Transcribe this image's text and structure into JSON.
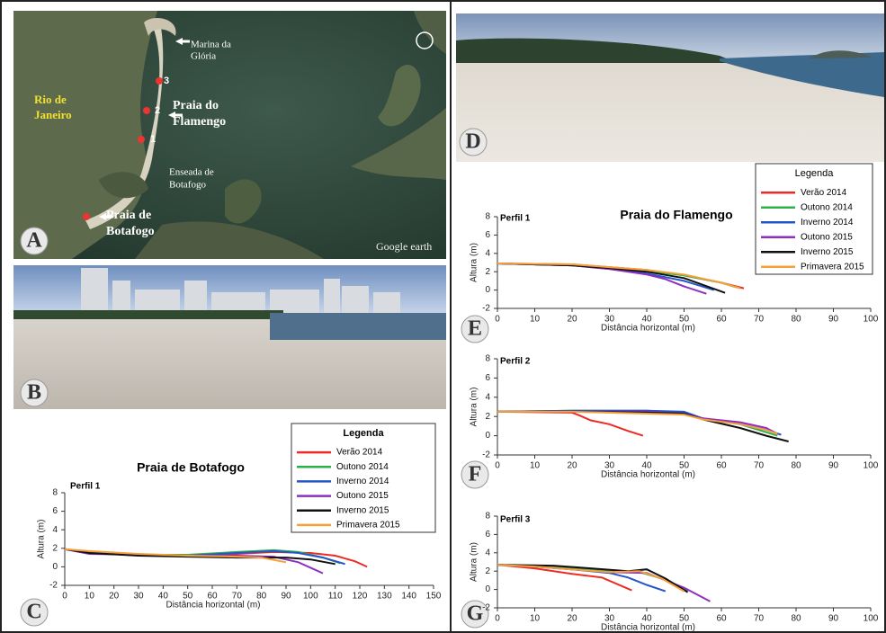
{
  "panels": [
    "A",
    "B",
    "C",
    "D",
    "E",
    "F",
    "G"
  ],
  "map": {
    "labels": {
      "marina": [
        "Marina da",
        "Glória"
      ],
      "city": [
        "Rio de",
        "Janeiro"
      ],
      "flamengo": [
        "Praia do",
        "Flamengo"
      ],
      "enseada": [
        "Enseada de",
        "Botafogo"
      ],
      "botafogo": [
        "Praia de",
        "Botafogo"
      ],
      "points": [
        "1",
        "2",
        "3"
      ],
      "credit": "Google earth"
    }
  },
  "chart_data": [
    {
      "type": "line",
      "title": "Praia de Botafogo",
      "subtitle": "Perfil 1",
      "x_label": "Distância horizontal (m)",
      "y_label": "Altura (m)",
      "legend_title": "Legenda",
      "legend": "upper right",
      "grid": false,
      "xlim": [
        0,
        150
      ],
      "xticks": [
        0,
        10,
        20,
        30,
        40,
        50,
        60,
        70,
        80,
        90,
        100,
        110,
        120,
        130,
        140,
        150
      ],
      "ylim": [
        -2,
        8
      ],
      "yticks": [
        -2,
        0,
        2,
        4,
        6,
        8
      ],
      "series": [
        {
          "name": "Verão 2014",
          "color": "#ee2a24",
          "x": [
            0,
            10,
            30,
            50,
            70,
            85,
            100,
            110,
            118,
            123
          ],
          "values": [
            1.9,
            1.6,
            1.3,
            1.2,
            1.4,
            1.6,
            1.5,
            1.2,
            0.6,
            0.0
          ]
        },
        {
          "name": "Outono 2014",
          "color": "#2db24a",
          "x": [
            0,
            10,
            30,
            50,
            70,
            85,
            95,
            105,
            112
          ],
          "values": [
            1.9,
            1.6,
            1.3,
            1.3,
            1.6,
            1.8,
            1.6,
            1.0,
            0.4
          ]
        },
        {
          "name": "Inverno 2014",
          "color": "#2456c8",
          "x": [
            0,
            10,
            30,
            50,
            70,
            85,
            95,
            105,
            114
          ],
          "values": [
            1.9,
            1.5,
            1.3,
            1.2,
            1.5,
            1.7,
            1.5,
            1.0,
            0.3
          ]
        },
        {
          "name": "Outono 2015",
          "color": "#8e2fc0",
          "x": [
            0,
            10,
            30,
            50,
            70,
            85,
            95,
            105
          ],
          "values": [
            1.9,
            1.4,
            1.3,
            1.2,
            1.2,
            1.1,
            0.5,
            -0.7
          ]
        },
        {
          "name": "Inverno 2015",
          "color": "#111111",
          "x": [
            0,
            10,
            30,
            50,
            70,
            90,
            100,
            110
          ],
          "values": [
            1.9,
            1.5,
            1.2,
            1.1,
            1.0,
            1.0,
            0.8,
            0.3
          ]
        },
        {
          "name": "Primavera 2015",
          "color": "#f5a03a",
          "x": [
            0,
            10,
            30,
            50,
            70,
            80,
            90
          ],
          "values": [
            1.9,
            1.7,
            1.4,
            1.2,
            1.1,
            1.0,
            0.5
          ]
        }
      ]
    },
    {
      "type": "line",
      "title": "Praia do Flamengo",
      "subtitle": "Perfil 1",
      "x_label": "Distância horizontal (m)",
      "y_label": "Altura (m)",
      "legend_title": "Legenda",
      "legend": "upper right",
      "grid": false,
      "xlim": [
        0,
        100
      ],
      "xticks": [
        0,
        10,
        20,
        30,
        40,
        50,
        60,
        70,
        80,
        90,
        100
      ],
      "ylim": [
        -2,
        8
      ],
      "yticks": [
        -2,
        0,
        2,
        4,
        6,
        8
      ],
      "series": [
        {
          "name": "Verão 2014",
          "color": "#ee2a24",
          "x": [
            0,
            20,
            30,
            40,
            50,
            60,
            66
          ],
          "values": [
            2.9,
            2.8,
            2.5,
            2.2,
            1.6,
            0.8,
            0.2
          ]
        },
        {
          "name": "Outono 2014",
          "color": "#2db24a",
          "x": [
            0,
            20,
            30,
            40,
            50,
            60,
            64
          ],
          "values": [
            2.9,
            2.7,
            2.4,
            2.1,
            1.6,
            0.8,
            0.3
          ]
        },
        {
          "name": "Inverno 2014",
          "color": "#2456c8",
          "x": [
            0,
            20,
            30,
            40,
            50,
            58
          ],
          "values": [
            2.9,
            2.7,
            2.3,
            1.8,
            1.0,
            0.0
          ]
        },
        {
          "name": "Outono 2015",
          "color": "#8e2fc0",
          "x": [
            0,
            20,
            30,
            40,
            45,
            50,
            56
          ],
          "values": [
            2.9,
            2.7,
            2.3,
            1.7,
            1.2,
            0.4,
            -0.4
          ]
        },
        {
          "name": "Inverno 2015",
          "color": "#111111",
          "x": [
            0,
            20,
            30,
            40,
            50,
            61
          ],
          "values": [
            2.9,
            2.7,
            2.4,
            2.0,
            1.3,
            -0.3
          ]
        },
        {
          "name": "Primavera 2015",
          "color": "#f5a03a",
          "x": [
            0,
            20,
            30,
            40,
            50,
            60,
            65
          ],
          "values": [
            2.9,
            2.8,
            2.5,
            2.2,
            1.7,
            0.8,
            0.2
          ]
        }
      ]
    },
    {
      "type": "line",
      "subtitle": "Perfil 2",
      "x_label": "Distância horizontal (m)",
      "y_label": "Altura (m)",
      "grid": false,
      "xlim": [
        0,
        100
      ],
      "xticks": [
        0,
        10,
        20,
        30,
        40,
        50,
        60,
        70,
        80,
        90,
        100
      ],
      "ylim": [
        -2,
        8
      ],
      "yticks": [
        -2,
        0,
        2,
        4,
        6,
        8
      ],
      "series": [
        {
          "color": "#ee2a24",
          "x": [
            0,
            20,
            22,
            25,
            30,
            35,
            39
          ],
          "values": [
            2.5,
            2.4,
            2.1,
            1.6,
            1.2,
            0.5,
            0.0
          ]
        },
        {
          "color": "#2db24a",
          "x": [
            0,
            20,
            40,
            50,
            55,
            65,
            70,
            75
          ],
          "values": [
            2.5,
            2.6,
            2.6,
            2.4,
            1.8,
            1.2,
            0.6,
            0.0
          ]
        },
        {
          "color": "#2456c8",
          "x": [
            0,
            20,
            40,
            50,
            55,
            65,
            72,
            76
          ],
          "values": [
            2.5,
            2.6,
            2.6,
            2.5,
            1.8,
            1.2,
            0.6,
            0.1
          ]
        },
        {
          "color": "#8e2fc0",
          "x": [
            0,
            20,
            40,
            50,
            55,
            65,
            72,
            75
          ],
          "values": [
            2.5,
            2.5,
            2.5,
            2.3,
            1.8,
            1.4,
            0.8,
            0.2
          ]
        },
        {
          "color": "#111111",
          "x": [
            0,
            20,
            40,
            50,
            55,
            65,
            72,
            78
          ],
          "values": [
            2.5,
            2.5,
            2.4,
            2.3,
            1.7,
            0.8,
            0.0,
            -0.6
          ]
        },
        {
          "color": "#f5a03a",
          "x": [
            0,
            20,
            40,
            50,
            55,
            65,
            72,
            75
          ],
          "values": [
            2.5,
            2.5,
            2.3,
            2.2,
            1.7,
            1.2,
            0.6,
            0.2
          ]
        }
      ]
    },
    {
      "type": "line",
      "subtitle": "Perfil 3",
      "x_label": "Distância horizontal (m)",
      "y_label": "Altura (m)",
      "grid": false,
      "xlim": [
        0,
        100
      ],
      "xticks": [
        0,
        10,
        20,
        30,
        40,
        50,
        60,
        70,
        80,
        90,
        100
      ],
      "ylim": [
        -2,
        8
      ],
      "yticks": [
        -2,
        0,
        2,
        4,
        6,
        8
      ],
      "series": [
        {
          "color": "#ee2a24",
          "x": [
            0,
            10,
            20,
            28,
            36
          ],
          "values": [
            2.7,
            2.3,
            1.7,
            1.3,
            -0.1
          ]
        },
        {
          "color": "#2db24a",
          "x": [
            0,
            10,
            20,
            30,
            38,
            44,
            51
          ],
          "values": [
            2.7,
            2.5,
            2.3,
            2.1,
            1.9,
            1.2,
            -0.2
          ]
        },
        {
          "color": "#2456c8",
          "x": [
            0,
            10,
            20,
            30,
            35,
            40,
            45
          ],
          "values": [
            2.7,
            2.5,
            2.2,
            1.8,
            1.3,
            0.5,
            -0.2
          ]
        },
        {
          "color": "#8e2fc0",
          "x": [
            0,
            10,
            20,
            30,
            40,
            50,
            57
          ],
          "values": [
            2.7,
            2.5,
            2.2,
            1.9,
            1.8,
            0.2,
            -1.3
          ]
        },
        {
          "color": "#111111",
          "x": [
            0,
            15,
            25,
            35,
            40,
            45,
            51
          ],
          "values": [
            2.7,
            2.6,
            2.3,
            2.0,
            2.2,
            1.2,
            -0.3
          ]
        },
        {
          "color": "#f5a03a",
          "x": [
            0,
            10,
            20,
            30,
            38,
            44,
            50
          ],
          "values": [
            2.7,
            2.5,
            2.2,
            1.9,
            2.0,
            1.2,
            -0.2
          ]
        }
      ]
    }
  ]
}
